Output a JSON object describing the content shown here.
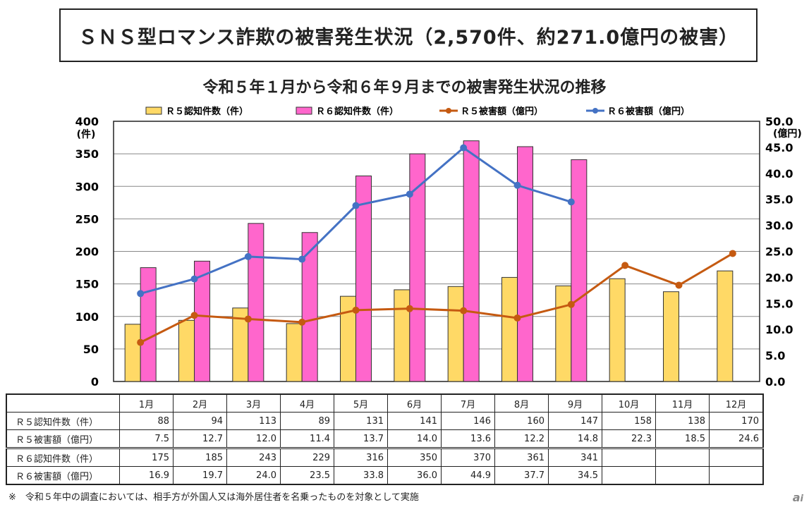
{
  "title": "ＳＮＳ型ロマンス詐欺の被害発生状況（2,570件、約271.0億円の被害）",
  "chart_data": {
    "type": "bar+line",
    "title": "令和５年１月から令和６年９月までの被害発生状況の推移",
    "categories": [
      "1月",
      "2月",
      "3月",
      "4月",
      "5月",
      "6月",
      "7月",
      "8月",
      "9月",
      "10月",
      "11月",
      "12月"
    ],
    "left_axis": {
      "unit": "(件)",
      "ylim": [
        0,
        400
      ],
      "ticks": [
        0,
        50,
        100,
        150,
        200,
        250,
        300,
        350,
        400
      ]
    },
    "right_axis": {
      "unit": "(億円)",
      "ylim": [
        0,
        50
      ],
      "ticks": [
        "0.0",
        "5.0",
        "10.0",
        "15.0",
        "20.0",
        "25.0",
        "30.0",
        "35.0",
        "40.0",
        "45.0",
        "50.0"
      ]
    },
    "legend_position": "top",
    "grid": true,
    "series": [
      {
        "name": "Ｒ５認知件数（件）",
        "type": "bar",
        "axis": "left",
        "color": "#FFD966",
        "values": [
          88,
          94,
          113,
          89,
          131,
          141,
          146,
          160,
          147,
          158,
          138,
          170
        ]
      },
      {
        "name": "Ｒ６認知件数（件）",
        "type": "bar",
        "axis": "left",
        "color": "#FF66CC",
        "values": [
          175,
          185,
          243,
          229,
          316,
          350,
          370,
          361,
          341,
          null,
          null,
          null
        ]
      },
      {
        "name": "Ｒ５被害額（億円）",
        "type": "line",
        "axis": "right",
        "color": "#C55A11",
        "values": [
          7.5,
          12.7,
          12.0,
          11.4,
          13.7,
          14.0,
          13.6,
          12.2,
          14.8,
          22.3,
          18.5,
          24.6
        ]
      },
      {
        "name": "Ｒ６被害額（億円）",
        "type": "line",
        "axis": "right",
        "color": "#4472C4",
        "values": [
          16.9,
          19.7,
          24.0,
          23.5,
          33.8,
          36.0,
          44.9,
          37.7,
          34.5,
          null,
          null,
          null
        ]
      }
    ]
  },
  "table": {
    "rows": [
      {
        "label": "Ｒ５認知件数（件）",
        "cells": [
          "88",
          "94",
          "113",
          "89",
          "131",
          "141",
          "146",
          "160",
          "147",
          "158",
          "138",
          "170"
        ]
      },
      {
        "label": "Ｒ５被害額（億円）",
        "cells": [
          "7.5",
          "12.7",
          "12.0",
          "11.4",
          "13.7",
          "14.0",
          "13.6",
          "12.2",
          "14.8",
          "22.3",
          "18.5",
          "24.6"
        ]
      },
      {
        "label": "Ｒ６認知件数（件）",
        "cells": [
          "175",
          "185",
          "243",
          "229",
          "316",
          "350",
          "370",
          "361",
          "341",
          "",
          "",
          ""
        ]
      },
      {
        "label": "Ｒ６被害額（億円）",
        "cells": [
          "16.9",
          "19.7",
          "24.0",
          "23.5",
          "33.8",
          "36.0",
          "44.9",
          "37.7",
          "34.5",
          "",
          "",
          ""
        ]
      }
    ]
  },
  "footnote": "※　令和５年中の調査においては、相手方が外国人又は海外居住者を名乗ったものを対象として実施",
  "watermark": "ai"
}
